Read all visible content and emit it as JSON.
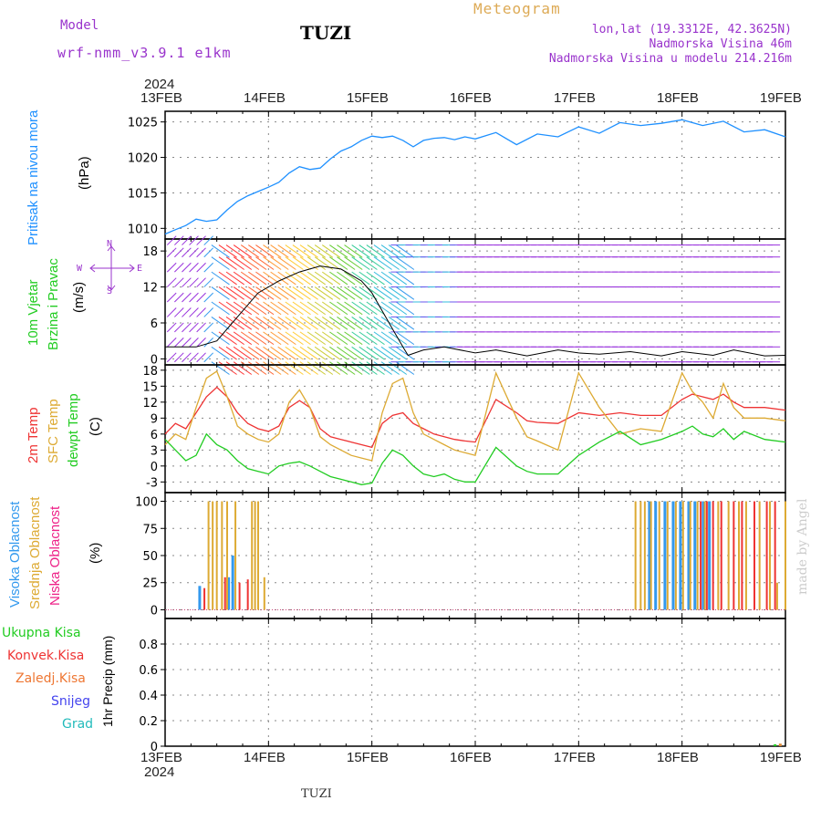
{
  "header": {
    "model_label": "Model",
    "model_value": "wrf-nmm_v3.9.1 e1km",
    "station": "TUZI",
    "chart_kind": "Meteogram",
    "coords": "lon,lat (19.3312E, 42.3625N)",
    "elevation": "Nadmorska Visina 46m",
    "model_elevation": "Nadmorska Visina u modelu 214.216m",
    "footer_station": "TUZI",
    "credit": "made by Angel"
  },
  "colors": {
    "purple": "#9933cc",
    "pressure": "#1e90ff",
    "green": "#22cc22",
    "red": "#ee3333",
    "orange": "#dd8833",
    "sfc": "#ddaa33",
    "pink": "#ee2288",
    "snow": "#4444ee",
    "grad": "#22bbbb",
    "sky": "#3399ee",
    "gold": "#ddaa00"
  },
  "axis": {
    "year": "2024",
    "dates": [
      "13FEB",
      "14FEB",
      "15FEB",
      "16FEB",
      "17FEB",
      "18FEB",
      "19FEB"
    ]
  },
  "panels": {
    "pressure": {
      "labels": [
        "Pritisak na nivou mora"
      ],
      "unit": "(hPa)",
      "ticks": [
        1010,
        1015,
        1020,
        1025
      ]
    },
    "wind": {
      "labels": [
        "10m Vjetar",
        "Brzina i Pravac"
      ],
      "unit": "(m/s)",
      "ticks": [
        0,
        6,
        12,
        18
      ],
      "compass": {
        "n": "N",
        "w": "W",
        "e": "E",
        "s": "S"
      }
    },
    "temp": {
      "labels": [
        "2m Temp",
        "SFC Temp",
        "dewpt Temp"
      ],
      "unit": "(C)",
      "ticks": [
        -3,
        0,
        3,
        6,
        9,
        12,
        15,
        18
      ]
    },
    "cloud": {
      "labels": [
        "Visoka Oblacnost",
        "Srednja Oblacnost",
        "Niska Oblacnost"
      ],
      "unit": "(%)",
      "ticks": [
        0,
        25,
        50,
        75,
        100
      ]
    },
    "precip": {
      "labels": [
        "Ukupna Kisa",
        "Konvek.Kisa",
        "Zaledj.Kisa",
        "Snijeg",
        "Grad"
      ],
      "unit": "1hr Precip (mm)",
      "ticks": [
        0,
        0.2,
        0.4,
        0.6,
        0.8
      ]
    }
  },
  "chart_data": [
    {
      "type": "line",
      "title": "Pritisak na nivou mora",
      "ylabel": "(hPa)",
      "x_unit": "day offset from 13FEB 2024 00UTC",
      "ylim": [
        1008.5,
        1026.5
      ],
      "series": [
        {
          "name": "Pritisak na nivou mora",
          "x": [
            0,
            0.08,
            0.2,
            0.3,
            0.4,
            0.5,
            0.6,
            0.7,
            0.8,
            0.9,
            1.0,
            1.1,
            1.2,
            1.3,
            1.4,
            1.5,
            1.6,
            1.7,
            1.8,
            1.9,
            2.0,
            2.1,
            2.2,
            2.3,
            2.4,
            2.5,
            2.6,
            2.7,
            2.8,
            2.9,
            3.0,
            3.2,
            3.4,
            3.6,
            3.8,
            4.0,
            4.2,
            4.4,
            4.6,
            4.8,
            5.0,
            5.2,
            5.4,
            5.6,
            5.8,
            6.0
          ],
          "y": [
            1009.2,
            1009.7,
            1010.4,
            1011.3,
            1011.0,
            1011.2,
            1012.6,
            1013.8,
            1014.6,
            1015.2,
            1015.8,
            1016.5,
            1017.8,
            1018.7,
            1018.3,
            1018.5,
            1019.8,
            1020.9,
            1021.5,
            1022.4,
            1023.0,
            1022.8,
            1023.0,
            1022.4,
            1021.5,
            1022.4,
            1022.7,
            1022.8,
            1022.5,
            1022.9,
            1022.6,
            1023.5,
            1021.8,
            1023.3,
            1022.9,
            1024.3,
            1023.4,
            1024.9,
            1024.5,
            1024.8,
            1025.3,
            1024.5,
            1025.1,
            1023.6,
            1023.9,
            1022.9
          ]
        }
      ]
    },
    {
      "type": "line",
      "title": "10m Vjetar Brzina i Pravac",
      "ylabel": "(m/s)",
      "x_unit": "day offset",
      "ylim": [
        -1,
        20
      ],
      "series": [
        {
          "name": "Brzina i Pravac",
          "x": [
            0,
            0.3,
            0.5,
            0.7,
            0.9,
            1.1,
            1.3,
            1.5,
            1.7,
            1.9,
            2.0,
            2.1,
            2.2,
            2.3,
            2.35,
            2.5,
            2.7,
            3.0,
            3.2,
            3.5,
            3.8,
            4.0,
            4.2,
            4.5,
            4.8,
            5.0,
            5.3,
            5.5,
            5.8,
            6.0
          ],
          "y": [
            2,
            2,
            3,
            7,
            11,
            13,
            14.5,
            15.5,
            15,
            13,
            11,
            8,
            5,
            2,
            0.6,
            1.5,
            2,
            1,
            1.5,
            0.5,
            1.5,
            1,
            0.8,
            1.2,
            0.5,
            1.2,
            0.6,
            1.5,
            0.5,
            0.6
          ]
        }
      ],
      "barbs": {
        "direction_deg": [],
        "count": 84
      }
    },
    {
      "type": "line",
      "title": "2m Temp / SFC Temp / dewpt Temp",
      "ylabel": "(C)",
      "x_unit": "day offset",
      "ylim": [
        -5,
        19
      ],
      "series": [
        {
          "name": "2m Temp",
          "x": [
            0,
            0.1,
            0.2,
            0.3,
            0.4,
            0.5,
            0.6,
            0.7,
            0.8,
            0.9,
            1.0,
            1.1,
            1.2,
            1.3,
            1.4,
            1.5,
            1.6,
            1.7,
            1.8,
            1.9,
            2.0,
            2.1,
            2.2,
            2.3,
            2.4,
            2.5,
            2.6,
            2.7,
            2.8,
            2.9,
            3.0,
            3.2,
            3.4,
            3.5,
            3.6,
            3.8,
            4.0,
            4.2,
            4.4,
            4.6,
            4.8,
            5.0,
            5.1,
            5.2,
            5.3,
            5.4,
            5.5,
            5.6,
            5.8,
            6.0
          ],
          "y": [
            6,
            8,
            7,
            10,
            13,
            14.8,
            13,
            10,
            8,
            7,
            6.5,
            7.5,
            11,
            12.3,
            11,
            7,
            5.5,
            5,
            4.5,
            4,
            3.5,
            8,
            9.5,
            10,
            8,
            7,
            6,
            5.5,
            5,
            4.7,
            4.5,
            12.5,
            10,
            8.5,
            8.2,
            8,
            10,
            9.5,
            10,
            9.5,
            9.5,
            12.5,
            13.5,
            13,
            12.5,
            13.5,
            12,
            11,
            11,
            10.5
          ]
        },
        {
          "name": "SFC Temp",
          "x": [
            0,
            0.1,
            0.2,
            0.3,
            0.4,
            0.5,
            0.6,
            0.7,
            0.8,
            0.9,
            1.0,
            1.1,
            1.2,
            1.3,
            1.4,
            1.5,
            1.6,
            1.7,
            1.8,
            1.9,
            2.0,
            2.1,
            2.2,
            2.3,
            2.4,
            2.5,
            2.6,
            2.7,
            2.8,
            2.9,
            3.0,
            3.2,
            3.4,
            3.5,
            3.6,
            3.8,
            4.0,
            4.2,
            4.4,
            4.6,
            4.8,
            5.0,
            5.1,
            5.2,
            5.3,
            5.4,
            5.5,
            5.6,
            5.8,
            6.0
          ],
          "y": [
            4,
            6,
            5,
            11,
            16.5,
            17.8,
            13,
            7.5,
            6,
            5,
            4.5,
            6,
            12,
            14.3,
            11,
            5.5,
            4,
            3,
            2,
            1.5,
            1,
            10,
            15.5,
            16.5,
            10,
            6,
            5,
            4,
            3,
            2.5,
            2,
            17.5,
            9,
            5.5,
            4.7,
            3,
            17.5,
            11,
            6,
            7,
            6.5,
            17.5,
            14,
            12,
            9,
            15.5,
            11,
            9,
            9,
            8.5
          ]
        },
        {
          "name": "dewpt Temp",
          "x": [
            0,
            0.1,
            0.2,
            0.3,
            0.4,
            0.5,
            0.6,
            0.7,
            0.8,
            0.9,
            1.0,
            1.1,
            1.2,
            1.3,
            1.4,
            1.5,
            1.6,
            1.7,
            1.8,
            1.9,
            2.0,
            2.1,
            2.2,
            2.3,
            2.4,
            2.5,
            2.6,
            2.7,
            2.8,
            2.9,
            3.0,
            3.2,
            3.4,
            3.5,
            3.6,
            3.8,
            4.0,
            4.2,
            4.4,
            4.6,
            4.8,
            5.0,
            5.1,
            5.2,
            5.3,
            5.4,
            5.5,
            5.6,
            5.8,
            6.0
          ],
          "y": [
            5,
            3,
            1,
            2,
            6,
            4,
            3,
            1,
            -0.5,
            -1,
            -1.5,
            0,
            0.5,
            0.8,
            0,
            -1,
            -2,
            -2.5,
            -3,
            -3.5,
            -3.2,
            0.5,
            3,
            2,
            0,
            -1.5,
            -2,
            -1.5,
            -2.5,
            -3,
            -3,
            3.5,
            0,
            -1,
            -1.5,
            -1.5,
            2,
            4.5,
            6.5,
            4,
            5,
            6.5,
            7.5,
            6,
            5.5,
            7,
            5,
            6.5,
            5,
            4.5
          ]
        }
      ]
    },
    {
      "type": "bar",
      "title": "Oblacnost",
      "ylabel": "(%)",
      "x_unit": "day offset",
      "ylim": [
        0,
        100
      ],
      "series": [
        {
          "name": "Visoka Oblacnost",
          "x": [
            0.33,
            0.61,
            0.65,
            4.68,
            4.74,
            4.83,
            4.91,
            4.98,
            5.06,
            5.12,
            5.2,
            5.26
          ],
          "values": [
            22,
            30,
            50,
            100,
            100,
            100,
            100,
            100,
            100,
            100,
            100,
            100
          ]
        },
        {
          "name": "Srednja Oblacnost",
          "x": [
            0.42,
            0.46,
            0.5,
            0.55,
            0.6,
            0.68,
            0.84,
            0.87,
            0.9,
            0.96,
            4.55,
            4.6,
            4.64,
            4.7,
            4.78,
            4.86,
            4.94,
            5.01,
            5.08,
            5.15,
            5.22,
            5.35,
            5.45,
            5.55,
            5.62,
            5.75,
            5.85,
            5.92,
            6.0
          ],
          "values": [
            100,
            100,
            100,
            100,
            100,
            100,
            100,
            100,
            100,
            30,
            100,
            100,
            100,
            100,
            100,
            100,
            100,
            100,
            100,
            100,
            100,
            100,
            100,
            100,
            100,
            100,
            100,
            25,
            100
          ]
        },
        {
          "name": "Niska Oblacnost",
          "x": [
            0.38,
            0.58,
            0.72,
            0.8,
            5.18,
            5.24,
            5.3,
            5.38,
            5.5,
            5.58,
            5.7,
            5.82,
            5.9
          ],
          "values": [
            20,
            30,
            25,
            28,
            100,
            100,
            100,
            100,
            100,
            100,
            100,
            100,
            100
          ]
        }
      ]
    },
    {
      "type": "bar",
      "title": "1hr Precip",
      "ylabel": "1hr Precip (mm)",
      "x_unit": "day offset",
      "ylim": [
        0,
        1
      ],
      "series": [
        {
          "name": "Ukupna Kisa",
          "x": [
            5.9
          ],
          "values": [
            0.015
          ]
        },
        {
          "name": "Konvek.Kisa",
          "x": [],
          "values": []
        },
        {
          "name": "Zaledj.Kisa",
          "x": [
            5.95
          ],
          "values": [
            0.02
          ]
        },
        {
          "name": "Snijeg",
          "x": [],
          "values": []
        },
        {
          "name": "Grad",
          "x": [],
          "values": []
        }
      ]
    }
  ]
}
